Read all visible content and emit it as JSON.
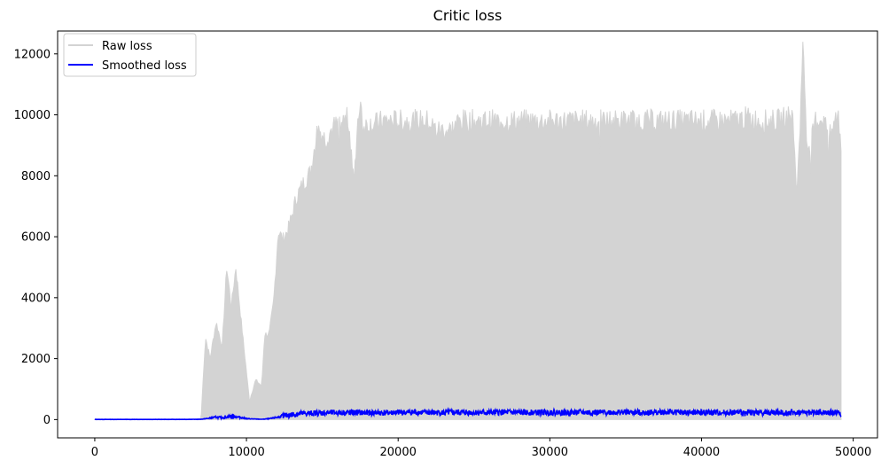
{
  "chart_data": {
    "type": "line",
    "title": "Critic loss",
    "xlabel": "",
    "ylabel": "",
    "xlim": [
      -2450,
      51600
    ],
    "ylim": [
      -600,
      12750
    ],
    "x_ticks": [
      0,
      10000,
      20000,
      30000,
      40000,
      50000
    ],
    "y_ticks": [
      0,
      2000,
      4000,
      6000,
      8000,
      10000,
      12000
    ],
    "x_tick_labels": [
      "0",
      "10000",
      "20000",
      "30000",
      "40000",
      "50000"
    ],
    "y_tick_labels": [
      "0",
      "2000",
      "4000",
      "6000",
      "8000",
      "10000",
      "12000"
    ],
    "grid": false,
    "legend_position": "top-left",
    "series": [
      {
        "name": "Raw loss",
        "color": "#d3d3d3",
        "style": "dense-oscillating-band",
        "x": [
          0,
          7000,
          7300,
          7600,
          8000,
          8400,
          8700,
          9000,
          9300,
          9700,
          10200,
          10600,
          11000,
          11200,
          11500,
          11800,
          12100,
          12400,
          12800,
          13300,
          13800,
          14200,
          14700,
          15200,
          15700,
          16200,
          16700,
          17100,
          17500,
          17700,
          18000,
          18500,
          19000,
          19500,
          20000,
          21000,
          22000,
          22500,
          23000,
          23500,
          24000,
          25000,
          30000,
          35000,
          38000,
          40000,
          41000,
          42000,
          43000,
          44000,
          45000,
          46000,
          46300,
          46700,
          47000,
          47500,
          48000,
          48500,
          49000,
          49200
        ],
        "y_upper": [
          0,
          0,
          2700,
          2000,
          3200,
          2400,
          5000,
          3700,
          5000,
          3000,
          600,
          1300,
          1100,
          2800,
          2800,
          3900,
          6200,
          5900,
          6300,
          7300,
          7800,
          8100,
          9600,
          9200,
          9600,
          9700,
          9900,
          8000,
          10600,
          9600,
          9700,
          9700,
          9800,
          9800,
          9800,
          9800,
          9800,
          9500,
          9500,
          9500,
          9800,
          9800,
          9800,
          9800,
          9800,
          9800,
          9800,
          9800,
          9900,
          9800,
          9800,
          10000,
          7400,
          12200,
          8500,
          9800,
          9900,
          9300,
          10100,
          8900
        ],
        "y_lower": 0
      },
      {
        "name": "Smoothed loss",
        "color": "#0000ff",
        "x": [
          0,
          2000,
          4000,
          6000,
          7000,
          7500,
          8000,
          8500,
          9000,
          9500,
          10000,
          10500,
          11000,
          11500,
          12000,
          12500,
          13000,
          13500,
          14000,
          14500,
          15000,
          16000,
          17000,
          18000,
          19000,
          20000,
          21000,
          22000,
          23000,
          24000,
          25000,
          26000,
          27000,
          28000,
          29000,
          30000,
          31000,
          32000,
          33000,
          34000,
          35000,
          36000,
          37000,
          38000,
          39000,
          40000,
          41000,
          42000,
          43000,
          44000,
          45000,
          46000,
          47000,
          48000,
          49000,
          49200
        ],
        "y": [
          5,
          5,
          5,
          5,
          10,
          40,
          80,
          60,
          110,
          80,
          30,
          20,
          10,
          30,
          70,
          120,
          160,
          190,
          200,
          210,
          220,
          230,
          230,
          220,
          220,
          230,
          240,
          230,
          230,
          240,
          230,
          230,
          240,
          230,
          230,
          240,
          230,
          240,
          230,
          240,
          240,
          230,
          240,
          240,
          230,
          230,
          230,
          230,
          230,
          230,
          230,
          230,
          230,
          230,
          230,
          200
        ],
        "noise_band": 120
      }
    ]
  }
}
